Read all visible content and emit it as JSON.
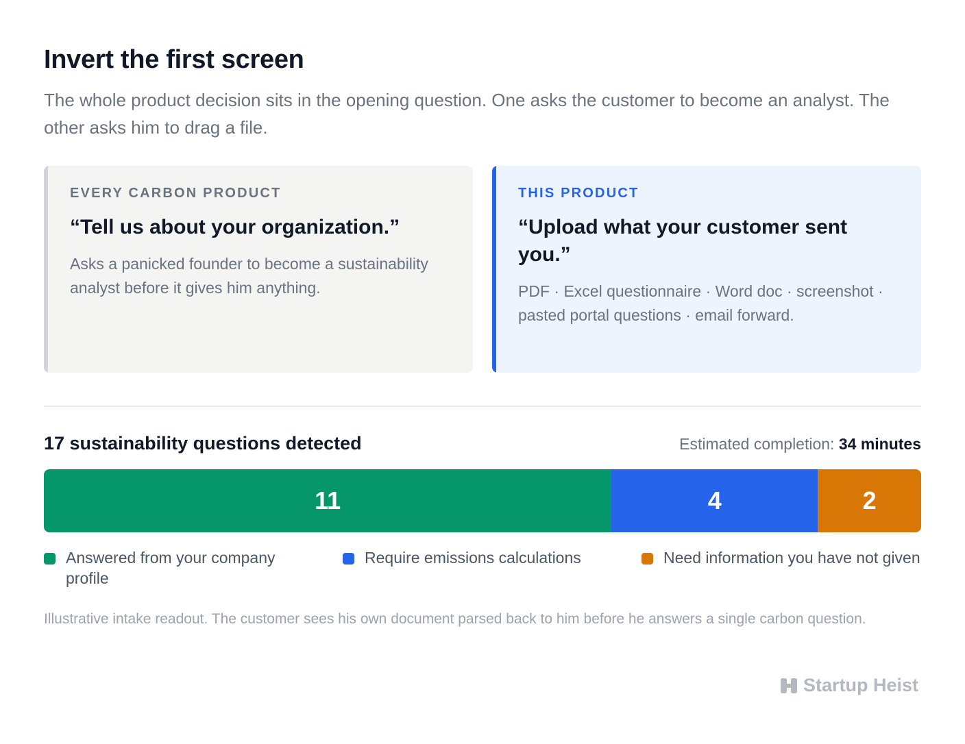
{
  "header": {
    "title": "Invert the first screen",
    "subtitle": "The whole product decision sits in the opening question. One asks the customer to become an analyst. The other asks him to drag a file."
  },
  "cards": [
    {
      "kicker": "EVERY CARBON PRODUCT",
      "quote": "“Tell us about your organization.”",
      "description": "Asks a panicked founder to become a sustainability analyst before it gives him anything.",
      "accent_color": "#d1d5db"
    },
    {
      "kicker": "THIS PRODUCT",
      "quote": "“Upload what your customer sent you.”",
      "description": "PDF · Excel questionnaire · Word doc · screenshot · pasted portal questions · email forward.",
      "accent_color": "#2563eb"
    }
  ],
  "summary": {
    "title": "17 sustainability questions detected",
    "eta_label": "Estimated completion: ",
    "eta_value": "34 minutes"
  },
  "chart_data": {
    "type": "bar",
    "orientation": "horizontal-stacked",
    "total": 17,
    "series": [
      {
        "name": "Answered from your company profile",
        "value": 11,
        "label": "11",
        "color": "#059669"
      },
      {
        "name": "Require emissions calculations",
        "value": 4,
        "label": "4",
        "color": "#2563eb"
      },
      {
        "name": "Need information you have not given",
        "value": 2,
        "label": "2",
        "color": "#d97706"
      }
    ]
  },
  "footnote": "Illustrative intake readout. The customer sees his own document parsed back to him before he answers a single carbon question.",
  "brand": {
    "name": "Startup Heist",
    "icon": "startup-heist-logo-icon"
  }
}
